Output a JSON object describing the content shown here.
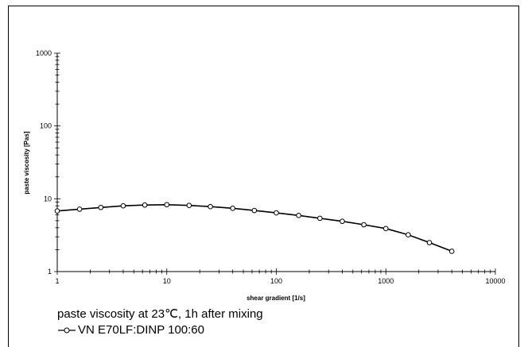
{
  "chart_data": {
    "type": "line",
    "title": "",
    "xlabel": "shear gradient  [1/s]",
    "ylabel": "paste viscosity  [Pas]",
    "xscale": "log",
    "yscale": "log",
    "xlim": [
      1,
      10000
    ],
    "ylim": [
      1,
      1000
    ],
    "x_ticks": [
      "1",
      "10",
      "100",
      "1000",
      "10000"
    ],
    "y_ticks": [
      "1",
      "10",
      "100",
      "1000"
    ],
    "grid": false,
    "series": [
      {
        "name": "VN E70LF:DINP 100:60",
        "x": [
          1,
          1.6,
          2.5,
          4,
          6.3,
          10,
          16,
          25,
          40,
          63,
          100,
          160,
          250,
          400,
          630,
          1000,
          1600,
          2500,
          4000
        ],
        "y": [
          6.8,
          7.2,
          7.6,
          8.0,
          8.2,
          8.3,
          8.1,
          7.8,
          7.4,
          6.9,
          6.4,
          5.9,
          5.4,
          4.9,
          4.4,
          3.9,
          3.2,
          2.5,
          1.9
        ]
      }
    ],
    "caption": "paste viscosity at 23℃, 1h after mixing",
    "legend": "bottom-left"
  }
}
